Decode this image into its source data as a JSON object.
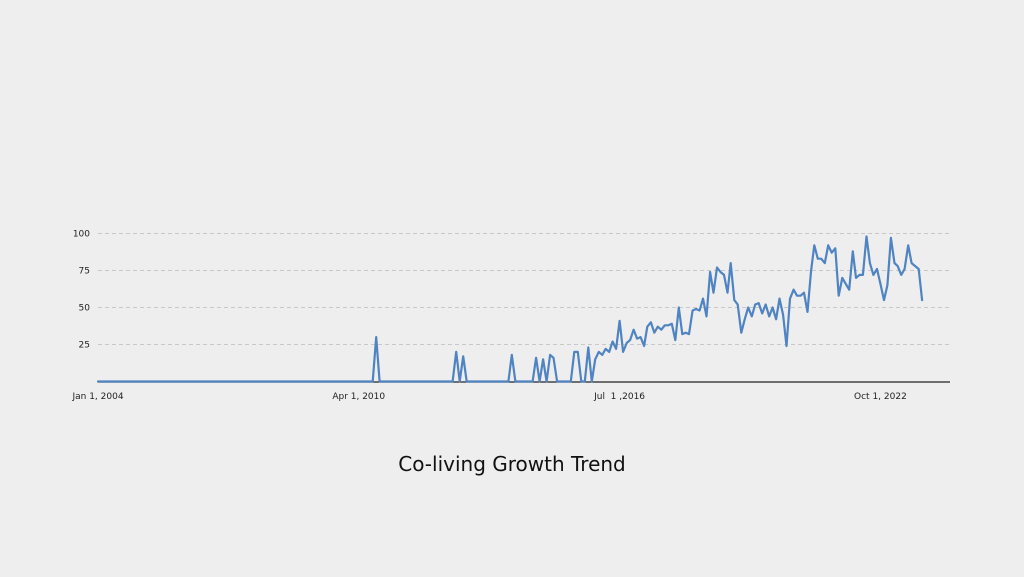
{
  "chart_data": {
    "type": "line",
    "title": "Co-living Growth Trend",
    "xlabel": "",
    "ylabel": "",
    "x_axis": {
      "type": "date",
      "range": [
        "2004-01-01",
        "2024-06-01"
      ],
      "ticks": [
        {
          "date": "2004-01-01",
          "label": "Jan 1, 2004"
        },
        {
          "date": "2010-04-01",
          "label": "Apr 1, 2010"
        },
        {
          "date": "2016-07-01",
          "label": "Jul  1 ,2016"
        },
        {
          "date": "2022-10-01",
          "label": "Oct 1, 2022"
        }
      ]
    },
    "y_axis": {
      "range": [
        0,
        100
      ],
      "ticks": [
        25,
        50,
        75,
        100
      ]
    },
    "grid": {
      "y": true,
      "style": "dashed"
    },
    "line_color": "#4f83c2",
    "series": [
      {
        "name": "",
        "points": [
          [
            "2004-01-01",
            0
          ],
          [
            "2008-06-01",
            0
          ],
          [
            "2010-08-01",
            0
          ],
          [
            "2010-09-01",
            30
          ],
          [
            "2010-10-01",
            0
          ],
          [
            "2012-07-01",
            0
          ],
          [
            "2012-08-01",
            20
          ],
          [
            "2012-09-01",
            0
          ],
          [
            "2012-10-01",
            17
          ],
          [
            "2012-11-01",
            0
          ],
          [
            "2013-11-01",
            0
          ],
          [
            "2013-12-01",
            18
          ],
          [
            "2014-01-01",
            0
          ],
          [
            "2014-06-01",
            0
          ],
          [
            "2014-07-01",
            16
          ],
          [
            "2014-08-01",
            0
          ],
          [
            "2014-09-01",
            15
          ],
          [
            "2014-10-01",
            0
          ],
          [
            "2014-11-01",
            18
          ],
          [
            "2014-12-01",
            16
          ],
          [
            "2015-01-01",
            0
          ],
          [
            "2015-05-01",
            0
          ],
          [
            "2015-06-01",
            20
          ],
          [
            "2015-07-01",
            20
          ],
          [
            "2015-08-01",
            0
          ],
          [
            "2015-09-01",
            0
          ],
          [
            "2015-10-01",
            23
          ],
          [
            "2015-11-01",
            0
          ],
          [
            "2015-12-01",
            15
          ],
          [
            "2016-01-01",
            20
          ],
          [
            "2016-02-01",
            18
          ],
          [
            "2016-03-01",
            22
          ],
          [
            "2016-04-01",
            20
          ],
          [
            "2016-05-01",
            27
          ],
          [
            "2016-06-01",
            22
          ],
          [
            "2016-07-01",
            41
          ],
          [
            "2016-08-01",
            20
          ],
          [
            "2016-09-01",
            26
          ],
          [
            "2016-10-01",
            28
          ],
          [
            "2016-11-01",
            35
          ],
          [
            "2016-12-01",
            29
          ],
          [
            "2017-01-01",
            30
          ],
          [
            "2017-02-01",
            24
          ],
          [
            "2017-03-01",
            37
          ],
          [
            "2017-04-01",
            40
          ],
          [
            "2017-05-01",
            33
          ],
          [
            "2017-06-01",
            37
          ],
          [
            "2017-07-01",
            35
          ],
          [
            "2017-08-01",
            38
          ],
          [
            "2017-09-01",
            38
          ],
          [
            "2017-10-01",
            39
          ],
          [
            "2017-11-01",
            28
          ],
          [
            "2017-12-01",
            50
          ],
          [
            "2018-01-01",
            32
          ],
          [
            "2018-02-01",
            33
          ],
          [
            "2018-03-01",
            32
          ],
          [
            "2018-04-01",
            48
          ],
          [
            "2018-05-01",
            49
          ],
          [
            "2018-06-01",
            48
          ],
          [
            "2018-07-01",
            56
          ],
          [
            "2018-08-01",
            44
          ],
          [
            "2018-09-01",
            74
          ],
          [
            "2018-10-01",
            60
          ],
          [
            "2018-11-01",
            77
          ],
          [
            "2018-12-01",
            74
          ],
          [
            "2019-01-01",
            72
          ],
          [
            "2019-02-01",
            60
          ],
          [
            "2019-03-01",
            80
          ],
          [
            "2019-04-01",
            55
          ],
          [
            "2019-05-01",
            52
          ],
          [
            "2019-06-01",
            33
          ],
          [
            "2019-07-01",
            42
          ],
          [
            "2019-08-01",
            50
          ],
          [
            "2019-09-01",
            44
          ],
          [
            "2019-10-01",
            52
          ],
          [
            "2019-11-01",
            53
          ],
          [
            "2019-12-01",
            46
          ],
          [
            "2020-01-01",
            52
          ],
          [
            "2020-02-01",
            44
          ],
          [
            "2020-03-01",
            50
          ],
          [
            "2020-04-01",
            42
          ],
          [
            "2020-05-01",
            56
          ],
          [
            "2020-06-01",
            45
          ],
          [
            "2020-07-01",
            24
          ],
          [
            "2020-08-01",
            56
          ],
          [
            "2020-09-01",
            62
          ],
          [
            "2020-10-01",
            58
          ],
          [
            "2020-11-01",
            58
          ],
          [
            "2020-12-01",
            60
          ],
          [
            "2021-01-01",
            47
          ],
          [
            "2021-02-01",
            75
          ],
          [
            "2021-03-01",
            92
          ],
          [
            "2021-04-01",
            83
          ],
          [
            "2021-05-01",
            83
          ],
          [
            "2021-06-01",
            80
          ],
          [
            "2021-07-01",
            92
          ],
          [
            "2021-08-01",
            87
          ],
          [
            "2021-09-01",
            90
          ],
          [
            "2021-10-01",
            58
          ],
          [
            "2021-11-01",
            70
          ],
          [
            "2021-12-01",
            66
          ],
          [
            "2022-01-01",
            62
          ],
          [
            "2022-02-01",
            88
          ],
          [
            "2022-03-01",
            70
          ],
          [
            "2022-04-01",
            72
          ],
          [
            "2022-05-01",
            72
          ],
          [
            "2022-06-01",
            98
          ],
          [
            "2022-07-01",
            80
          ],
          [
            "2022-08-01",
            72
          ],
          [
            "2022-09-01",
            76
          ],
          [
            "2022-10-01",
            66
          ],
          [
            "2022-11-01",
            55
          ],
          [
            "2022-12-01",
            65
          ],
          [
            "2023-01-01",
            97
          ],
          [
            "2023-02-01",
            80
          ],
          [
            "2023-03-01",
            78
          ],
          [
            "2023-04-01",
            72
          ],
          [
            "2023-05-01",
            76
          ],
          [
            "2023-06-01",
            92
          ],
          [
            "2023-07-01",
            80
          ],
          [
            "2023-08-01",
            78
          ],
          [
            "2023-09-01",
            76
          ],
          [
            "2023-10-01",
            55
          ]
        ]
      }
    ]
  }
}
